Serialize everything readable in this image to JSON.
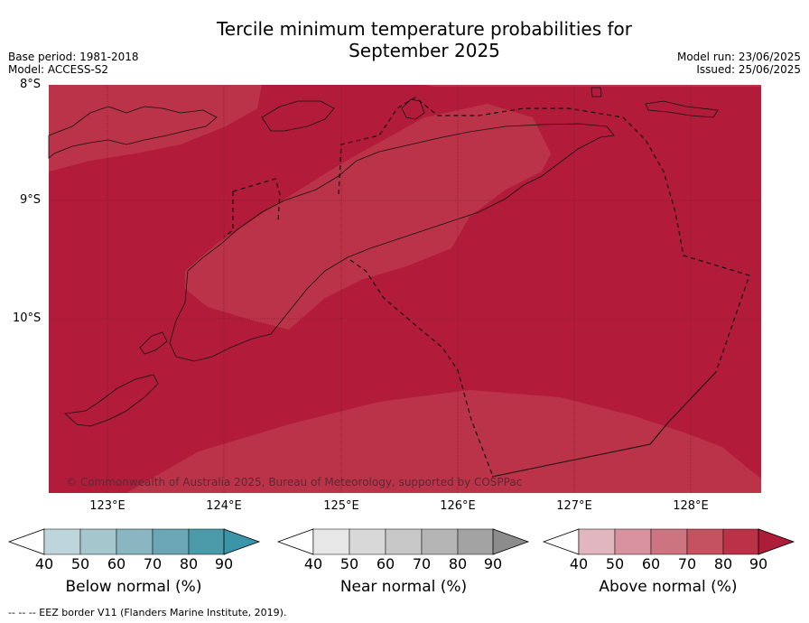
{
  "title_line1": "Tercile minimum temperature probabilities for",
  "title_line2": "September 2025",
  "base_period": "Base period: 1981-2018",
  "model": "Model: ACCESS-S2",
  "model_run": "Model run: 23/06/2025",
  "issued": "Issued: 25/06/2025",
  "lat_labels": [
    "8°S",
    "9°S",
    "10°S"
  ],
  "lon_labels": [
    "123°E",
    "124°E",
    "125°E",
    "126°E",
    "127°E",
    "128°E"
  ],
  "copyright": "© Commonwealth of Australia 2025, Bureau of Meteorology, supported by COSPPac",
  "legend": {
    "below": {
      "title": "Below normal (%)",
      "ticks": [
        "40",
        "50",
        "60",
        "70",
        "80",
        "90"
      ],
      "colors": [
        "#bfd5dc",
        "#a5c6cc",
        "#89b6c0",
        "#6aa6b4",
        "#4b9aaa",
        "#3a95a8"
      ]
    },
    "near": {
      "title": "Near normal (%)",
      "ticks": [
        "40",
        "50",
        "60",
        "70",
        "80",
        "90"
      ],
      "colors": [
        "#e7e7e7",
        "#d8d8d8",
        "#c8c8c8",
        "#b5b5b5",
        "#a3a3a3",
        "#8c8c8c"
      ]
    },
    "above": {
      "title": "Above normal (%)",
      "ticks": [
        "40",
        "50",
        "60",
        "70",
        "80",
        "90"
      ],
      "colors": [
        "#e1b6bf",
        "#d8929f",
        "#cc7480",
        "#c4535f",
        "#bb3147",
        "#ad1c39"
      ]
    }
  },
  "map_colors": {
    "above_90": "#b21c3a",
    "above_80": "#bb3348"
  },
  "footer": "-- -- -- EEZ border V11 (Flanders Marine Institute, 2019)."
}
